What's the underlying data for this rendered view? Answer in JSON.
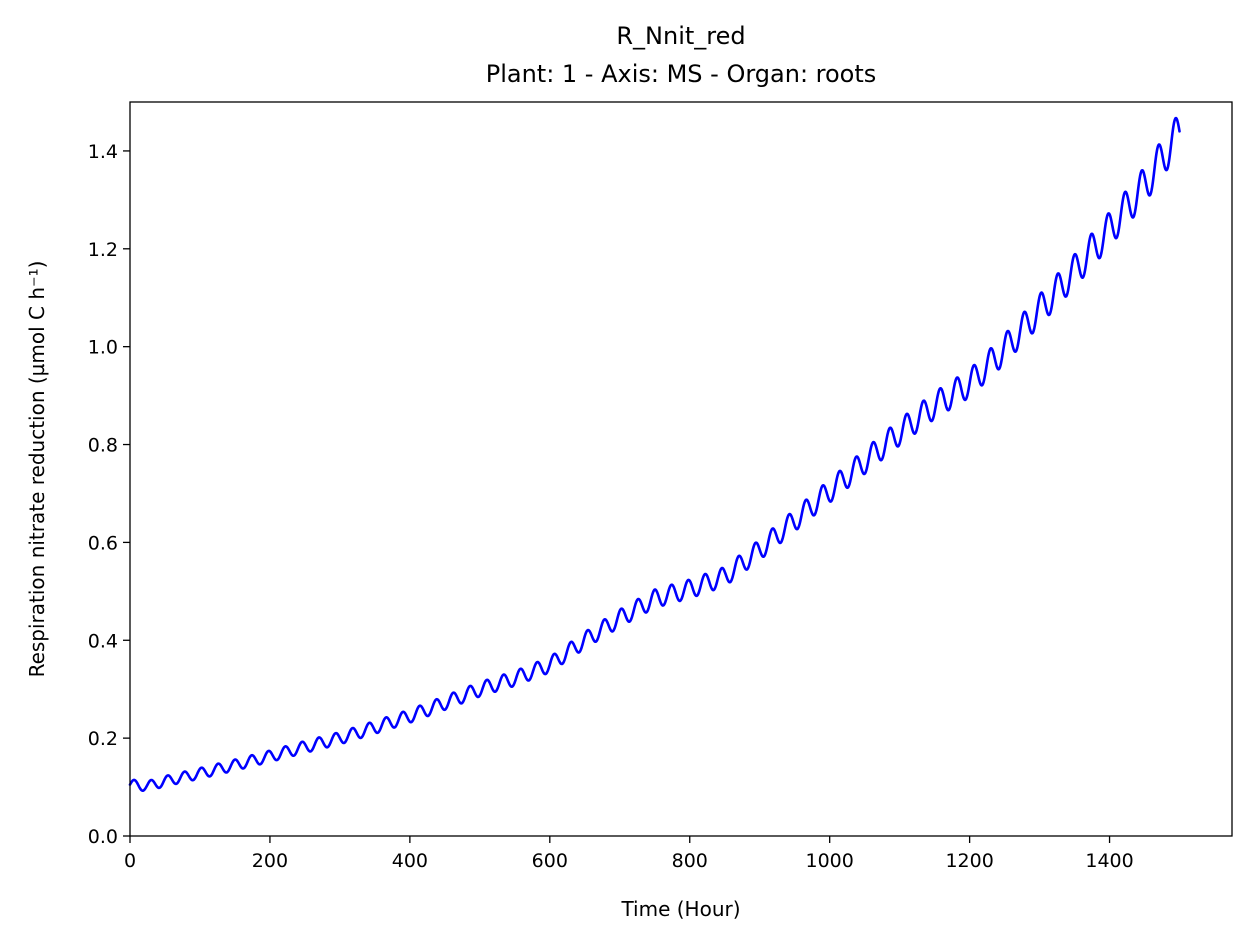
{
  "chart_data": {
    "type": "line",
    "title": "R_Nnit_red",
    "subtitle": "Plant: 1 - Axis: MS - Organ: roots",
    "xlabel": "Time (Hour)",
    "ylabel": "Respiration nitrate reduction (µmol C h⁻¹)",
    "xlim": [
      0,
      1575
    ],
    "ylim": [
      0,
      1.5
    ],
    "xticks": [
      0,
      200,
      400,
      600,
      800,
      1000,
      1200,
      1400
    ],
    "yticks": [
      0.0,
      0.2,
      0.4,
      0.6,
      0.8,
      1.0,
      1.2,
      1.4
    ],
    "xtick_labels": [
      "0",
      "200",
      "400",
      "600",
      "800",
      "1000",
      "1200",
      "1400"
    ],
    "ytick_labels": [
      "0.0",
      "0.2",
      "0.4",
      "0.6",
      "0.8",
      "1.0",
      "1.2",
      "1.4"
    ],
    "grid": false,
    "legend": "none",
    "series": [
      {
        "color": "#0000ff",
        "x": [
          0,
          25,
          50,
          100,
          150,
          200,
          250,
          300,
          350,
          400,
          450,
          500,
          550,
          600,
          650,
          700,
          750,
          800,
          850,
          900,
          950,
          1000,
          1050,
          1100,
          1150,
          1200,
          1250,
          1300,
          1350,
          1400,
          1450,
          1500
        ],
        "y": [
          0.105,
          0.102,
          0.112,
          0.128,
          0.145,
          0.163,
          0.182,
          0.2,
          0.222,
          0.245,
          0.272,
          0.3,
          0.322,
          0.35,
          0.4,
          0.445,
          0.485,
          0.505,
          0.53,
          0.585,
          0.645,
          0.705,
          0.765,
          0.825,
          0.88,
          0.925,
          0.995,
          1.075,
          1.155,
          1.24,
          1.33,
          1.44
        ]
      }
    ]
  }
}
